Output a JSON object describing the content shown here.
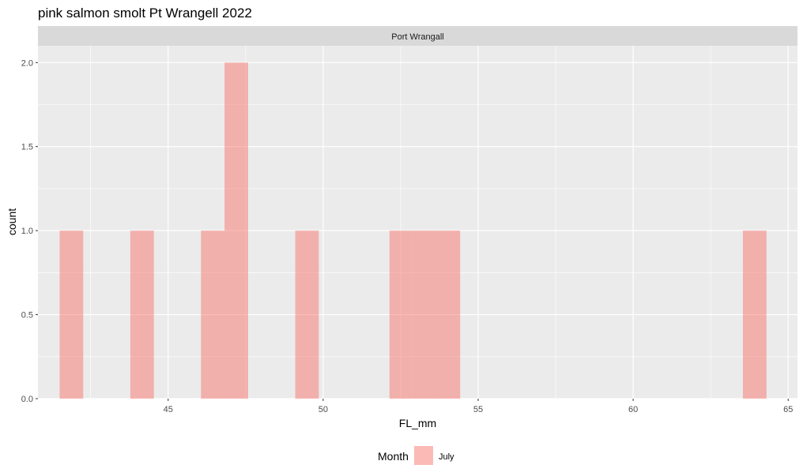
{
  "chart_data": {
    "type": "bar",
    "title": "pink salmon smolt Pt Wrangell 2022",
    "facet_label": "Port Wrangall",
    "xlabel": "FL_mm",
    "ylabel": "count",
    "xlim": [
      40.8,
      65.3
    ],
    "ylim": [
      0,
      2.1
    ],
    "x_ticks": [
      45,
      50,
      55,
      60,
      65
    ],
    "y_ticks": [
      0.0,
      0.5,
      1.0,
      1.5,
      2.0
    ],
    "y_tick_labels": [
      "0.0",
      "0.5",
      "1.0",
      "1.5",
      "2.0"
    ],
    "bin_width": 0.76,
    "bins": [
      {
        "x0": 41.5,
        "x1": 42.26,
        "count": 1
      },
      {
        "x0": 43.78,
        "x1": 44.54,
        "count": 1
      },
      {
        "x0": 46.06,
        "x1": 46.82,
        "count": 1
      },
      {
        "x0": 46.82,
        "x1": 47.58,
        "count": 2
      },
      {
        "x0": 49.1,
        "x1": 49.86,
        "count": 1
      },
      {
        "x0": 52.14,
        "x1": 52.9,
        "count": 1
      },
      {
        "x0": 52.9,
        "x1": 53.66,
        "count": 1
      },
      {
        "x0": 53.66,
        "x1": 54.42,
        "count": 1
      },
      {
        "x0": 63.54,
        "x1": 64.3,
        "count": 1
      }
    ],
    "grid": true,
    "legend": {
      "position": "bottom",
      "title": "Month",
      "entries": [
        {
          "label": "July",
          "color": "#F8766D"
        }
      ]
    },
    "colors": {
      "panel_bg": "#EBEBEB",
      "strip_bg": "#D9D9D9",
      "bar_fill": "#F8766D",
      "bar_alpha": 0.5
    }
  }
}
